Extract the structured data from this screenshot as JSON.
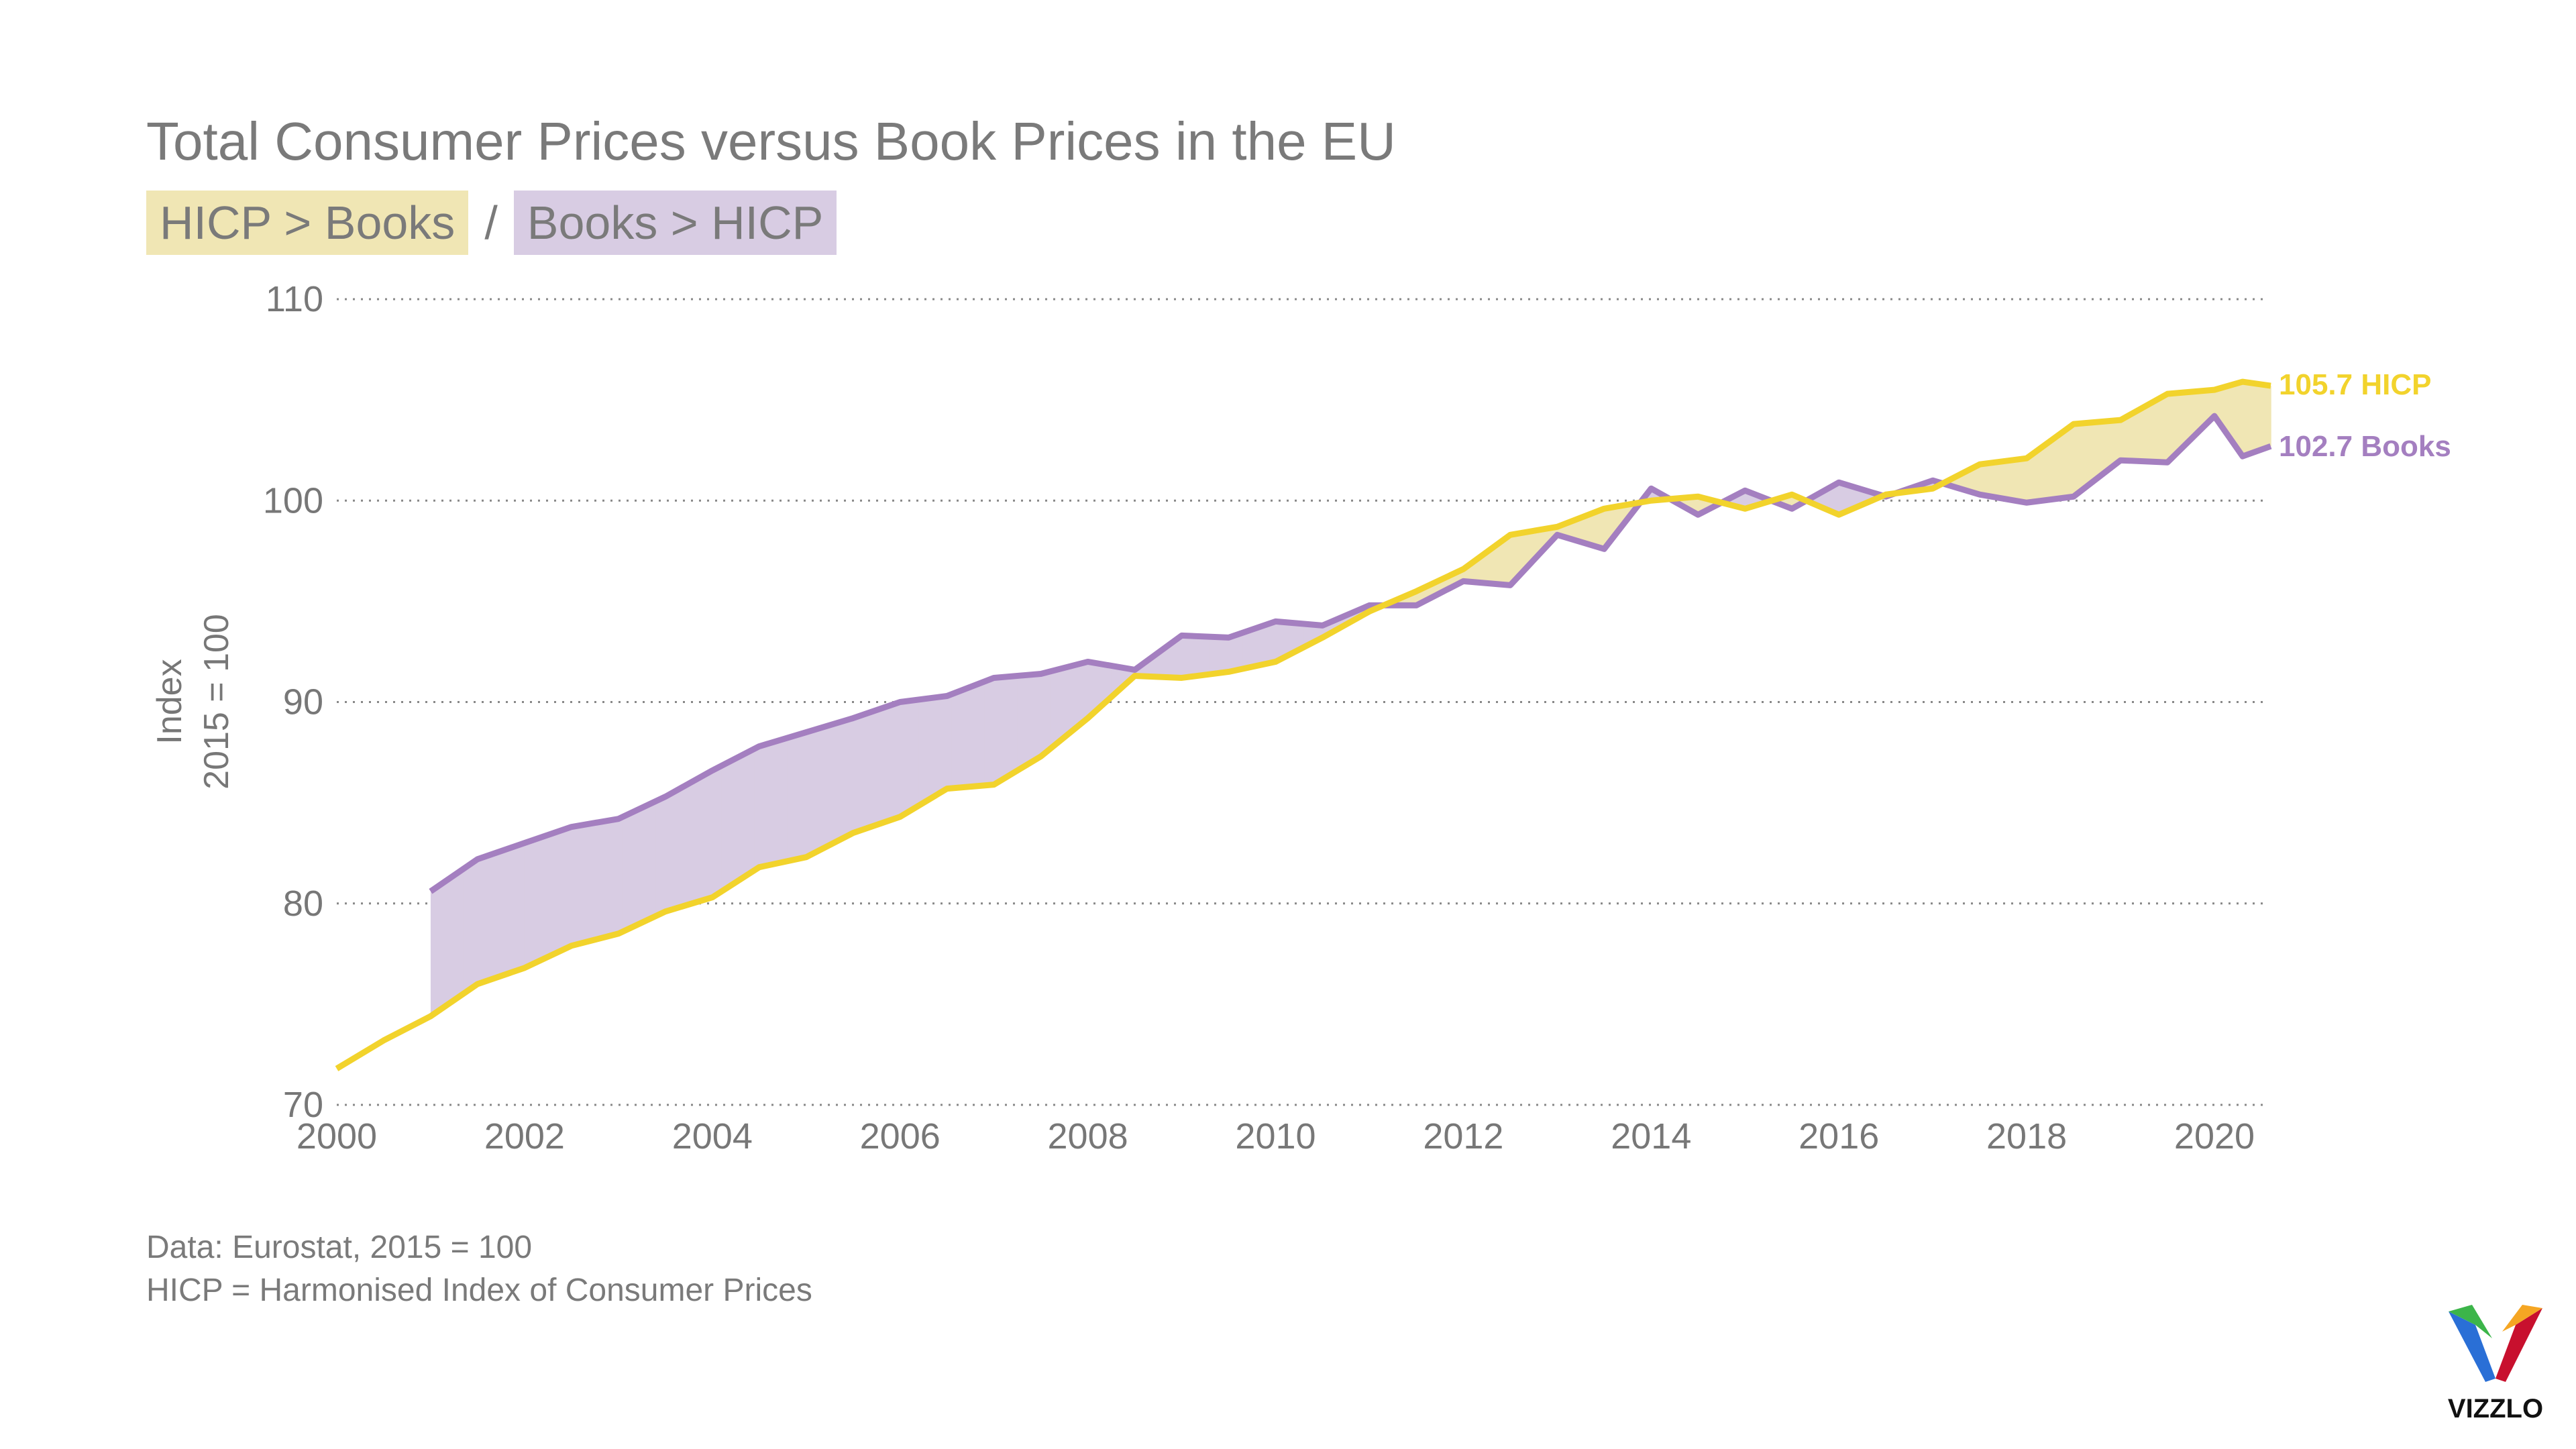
{
  "chart_data": {
    "type": "area",
    "title": "Total Consumer Prices versus Book Prices in the EU",
    "legend": [
      {
        "label": "HICP > Books",
        "color": "#F0E6B4"
      },
      {
        "label": "Books > HICP",
        "color": "#D8CCE3"
      }
    ],
    "legend_separator": "/",
    "ylabel_lines": [
      "Index",
      "2015 = 100"
    ],
    "ylim": [
      70,
      110
    ],
    "yticks": [
      70,
      80,
      90,
      100,
      110
    ],
    "xlim": [
      2000,
      2020.6
    ],
    "xticks": [
      2000,
      2002,
      2004,
      2006,
      2008,
      2010,
      2012,
      2014,
      2016,
      2018,
      2020
    ],
    "grid": "horizontal dotted",
    "series": [
      {
        "name": "HICP",
        "color": "#F2D32C",
        "end_label": "105.7 HICP",
        "x": [
          2000,
          2000.5,
          2001,
          2001.5,
          2002,
          2002.5,
          2003,
          2003.5,
          2004,
          2004.5,
          2005,
          2005.5,
          2006,
          2006.5,
          2007,
          2007.5,
          2008,
          2008.5,
          2009,
          2009.5,
          2010,
          2010.5,
          2011,
          2011.5,
          2012,
          2012.5,
          2013,
          2013.5,
          2014,
          2014.5,
          2015,
          2015.5,
          2016,
          2016.5,
          2017,
          2017.5,
          2018,
          2018.5,
          2019,
          2019.5,
          2020,
          2020.3,
          2020.6
        ],
        "y": [
          71.8,
          73.2,
          74.4,
          76.0,
          76.8,
          77.9,
          78.5,
          79.6,
          80.3,
          81.8,
          82.3,
          83.5,
          84.3,
          85.7,
          85.9,
          87.3,
          89.2,
          91.3,
          91.2,
          91.5,
          92.0,
          93.2,
          94.5,
          95.5,
          96.6,
          98.3,
          98.7,
          99.6,
          100.0,
          100.2,
          99.6,
          100.3,
          99.3,
          100.3,
          100.6,
          101.8,
          102.1,
          103.8,
          104.0,
          105.3,
          105.5,
          105.9,
          105.7
        ]
      },
      {
        "name": "Books",
        "color": "#A47FC0",
        "end_label": "102.7 Books",
        "x": [
          2001,
          2001.5,
          2002,
          2002.5,
          2003,
          2003.5,
          2004,
          2004.5,
          2005,
          2005.5,
          2006,
          2006.5,
          2007,
          2007.5,
          2008,
          2008.5,
          2009,
          2009.5,
          2010,
          2010.5,
          2011,
          2011.5,
          2012,
          2012.5,
          2013,
          2013.5,
          2014,
          2014.5,
          2015,
          2015.5,
          2016,
          2016.5,
          2017,
          2017.5,
          2018,
          2018.5,
          2019,
          2019.5,
          2020,
          2020.3,
          2020.6
        ],
        "y": [
          80.6,
          82.2,
          83.0,
          83.8,
          84.2,
          85.3,
          86.6,
          87.8,
          88.5,
          89.2,
          90.0,
          90.3,
          91.2,
          91.4,
          92.0,
          91.6,
          93.3,
          93.2,
          94.0,
          93.8,
          94.8,
          94.8,
          96.0,
          95.8,
          98.3,
          97.6,
          100.6,
          99.3,
          100.5,
          99.6,
          100.9,
          100.2,
          101.0,
          100.3,
          99.9,
          100.2,
          102.0,
          101.9,
          104.2,
          102.2,
          102.7
        ]
      }
    ]
  },
  "notes": [
    "Data: Eurostat, 2015 = 100",
    "HICP = Harmonised Index of Consumer Prices"
  ],
  "logo": {
    "text": "VIZZLO"
  }
}
